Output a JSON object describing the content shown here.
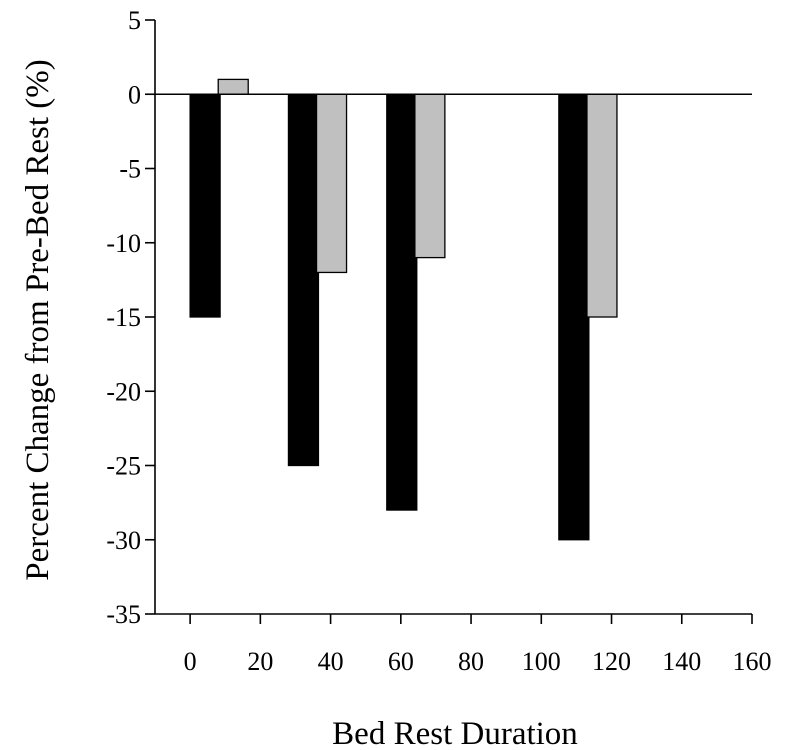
{
  "chart_data": {
    "type": "bar",
    "title": "",
    "xlabel": "Bed Rest Duration",
    "ylabel": "Percent Change from Pre-Bed Rest (%)",
    "xlim": [
      -10,
      160
    ],
    "ylim": [
      -35,
      5
    ],
    "x_ticks": [
      0,
      20,
      40,
      60,
      80,
      100,
      120,
      140,
      160
    ],
    "y_ticks": [
      5,
      0,
      -5,
      -10,
      -15,
      -20,
      -25,
      -30,
      -35
    ],
    "grid": false,
    "legend": "none",
    "series": [
      {
        "color": "#000000",
        "points": [
          {
            "x": 0,
            "y": -15
          },
          {
            "x": 28,
            "y": -25
          },
          {
            "x": 56,
            "y": -28
          },
          {
            "x": 105,
            "y": -30
          }
        ]
      },
      {
        "color": "#c0c0c0",
        "points": [
          {
            "x": 8,
            "y": 1
          },
          {
            "x": 36,
            "y": -12
          },
          {
            "x": 64,
            "y": -11
          },
          {
            "x": 113,
            "y": -15
          }
        ]
      }
    ]
  }
}
